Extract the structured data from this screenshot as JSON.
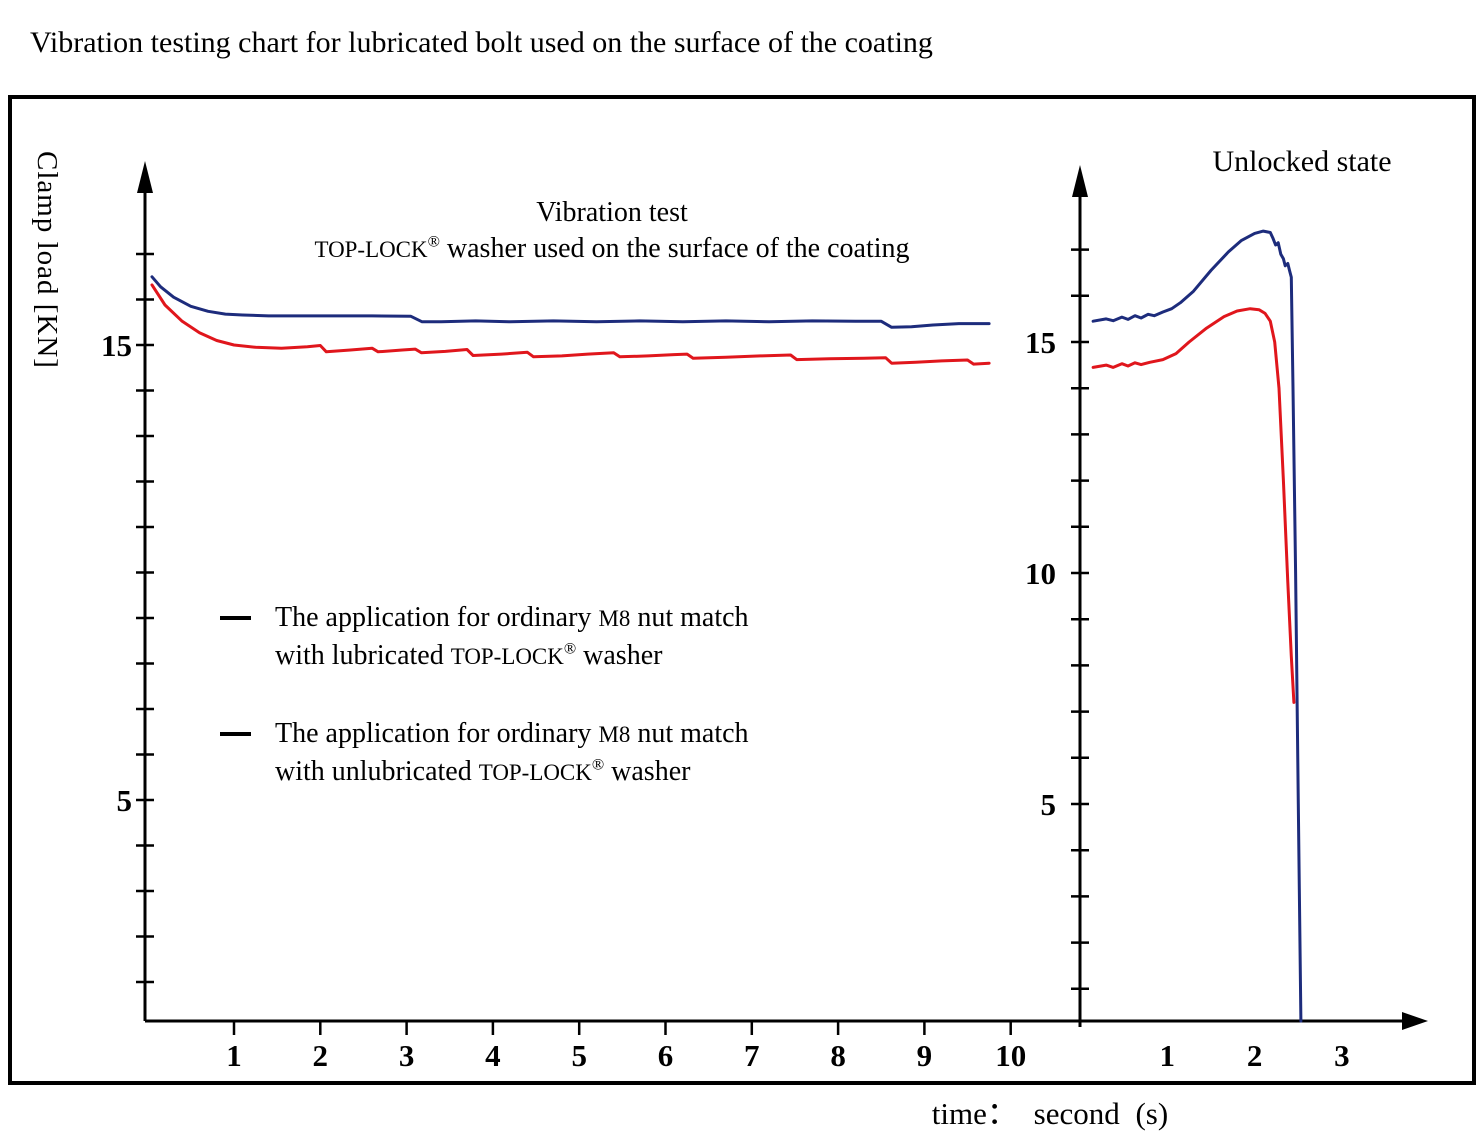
{
  "title": "Vibration testing chart for lubricated bolt used on the surface of the coating",
  "left_chart": {
    "title_line1": "Vibration test",
    "title_brand": "TOP-LOCK",
    "title_reg": "®",
    "title_line2_rest": " washer used on the surface of the coating",
    "ylabel": "Clamp load [KN]"
  },
  "right_chart": {
    "title": "Unlocked state"
  },
  "time_label": "time： second (s)",
  "legend": {
    "items": [
      {
        "line1_pre": "The application for ordinary ",
        "m8": "M8",
        "line1_post": " nut match",
        "line2_pre": "with lubricated ",
        "brand": "TOP-LOCK",
        "reg": "®",
        "line2_post": " washer"
      },
      {
        "line1_pre": "The application for ordinary ",
        "m8": "M8",
        "line1_post": " nut match",
        "line2_pre": "with unlubricated ",
        "brand": "TOP-LOCK",
        "reg": "®",
        "line2_post": " washer"
      }
    ]
  },
  "colors": {
    "blue": "#1d2c7c",
    "red": "#e0161c",
    "axis": "#000000"
  },
  "chart_data": [
    {
      "type": "line",
      "id": "vibration-test",
      "title": "Vibration test TOP-LOCK® washer used on the surface of the coating",
      "xlabel": "time： second (s)",
      "ylabel": "Clamp load [KN]",
      "xlim": [
        0,
        10.6
      ],
      "ylim": [
        0,
        18
      ],
      "grid": false,
      "x_ticks": [
        "1",
        "2",
        "3",
        "4",
        "5",
        "6",
        "7",
        "8",
        "9",
        "10"
      ],
      "y_minor_range": [
        1,
        17
      ],
      "y_labeled_ticks": [
        {
          "value": 15,
          "label": "15"
        },
        {
          "value": 5,
          "label": "5"
        }
      ],
      "series": [
        {
          "name": "blue-curve",
          "color": "#1d2c7c",
          "points": [
            [
              0.05,
              16.5
            ],
            [
              0.15,
              16.28
            ],
            [
              0.3,
              16.05
            ],
            [
              0.5,
              15.85
            ],
            [
              0.7,
              15.74
            ],
            [
              0.9,
              15.68
            ],
            [
              1.1,
              15.66
            ],
            [
              1.4,
              15.64
            ],
            [
              2.0,
              15.64
            ],
            [
              2.6,
              15.64
            ],
            [
              3.05,
              15.63
            ],
            [
              3.18,
              15.51
            ],
            [
              3.4,
              15.51
            ],
            [
              3.8,
              15.53
            ],
            [
              4.2,
              15.51
            ],
            [
              4.7,
              15.53
            ],
            [
              5.2,
              15.51
            ],
            [
              5.7,
              15.53
            ],
            [
              6.2,
              15.51
            ],
            [
              6.7,
              15.53
            ],
            [
              7.2,
              15.51
            ],
            [
              7.7,
              15.53
            ],
            [
              8.2,
              15.52
            ],
            [
              8.5,
              15.52
            ],
            [
              8.62,
              15.39
            ],
            [
              8.85,
              15.4
            ],
            [
              9.1,
              15.44
            ],
            [
              9.4,
              15.47
            ],
            [
              9.75,
              15.47
            ]
          ]
        },
        {
          "name": "red-curve",
          "color": "#e0161c",
          "points": [
            [
              0.05,
              16.32
            ],
            [
              0.2,
              15.88
            ],
            [
              0.4,
              15.52
            ],
            [
              0.6,
              15.27
            ],
            [
              0.8,
              15.1
            ],
            [
              1.0,
              15.0
            ],
            [
              1.25,
              14.95
            ],
            [
              1.55,
              14.93
            ],
            [
              1.85,
              14.96
            ],
            [
              2.0,
              14.99
            ],
            [
              2.07,
              14.85
            ],
            [
              2.35,
              14.89
            ],
            [
              2.6,
              14.93
            ],
            [
              2.67,
              14.85
            ],
            [
              2.95,
              14.89
            ],
            [
              3.1,
              14.91
            ],
            [
              3.17,
              14.83
            ],
            [
              3.45,
              14.86
            ],
            [
              3.7,
              14.9
            ],
            [
              3.77,
              14.77
            ],
            [
              4.1,
              14.8
            ],
            [
              4.4,
              14.84
            ],
            [
              4.47,
              14.74
            ],
            [
              4.8,
              14.76
            ],
            [
              5.1,
              14.8
            ],
            [
              5.4,
              14.83
            ],
            [
              5.47,
              14.74
            ],
            [
              5.8,
              14.76
            ],
            [
              6.1,
              14.79
            ],
            [
              6.25,
              14.8
            ],
            [
              6.32,
              14.71
            ],
            [
              6.7,
              14.73
            ],
            [
              7.1,
              14.76
            ],
            [
              7.45,
              14.78
            ],
            [
              7.52,
              14.68
            ],
            [
              7.9,
              14.7
            ],
            [
              8.3,
              14.71
            ],
            [
              8.55,
              14.72
            ],
            [
              8.62,
              14.6
            ],
            [
              8.9,
              14.62
            ],
            [
              9.2,
              14.65
            ],
            [
              9.5,
              14.67
            ],
            [
              9.57,
              14.58
            ],
            [
              9.75,
              14.6
            ]
          ]
        }
      ]
    },
    {
      "type": "line",
      "id": "unlocked-state",
      "title": "Unlocked state",
      "xlabel": "time： second (s)",
      "ylabel": "Clamp load [KN]",
      "xlim": [
        0,
        3.8
      ],
      "ylim": [
        0,
        18
      ],
      "grid": false,
      "x_tick_labels": [
        "1",
        "2",
        "3"
      ],
      "y_minor_range": [
        1,
        17
      ],
      "y_labeled_ticks": [
        {
          "value": 15,
          "label": "15"
        },
        {
          "value": 10,
          "label": "10"
        },
        {
          "value": 5,
          "label": "5"
        }
      ],
      "series": [
        {
          "name": "blue-curve",
          "color": "#1d2c7c",
          "points": [
            [
              0.15,
              15.45
            ],
            [
              0.3,
              15.5
            ],
            [
              0.38,
              15.46
            ],
            [
              0.48,
              15.54
            ],
            [
              0.55,
              15.49
            ],
            [
              0.63,
              15.57
            ],
            [
              0.7,
              15.52
            ],
            [
              0.78,
              15.6
            ],
            [
              0.85,
              15.57
            ],
            [
              0.95,
              15.65
            ],
            [
              1.05,
              15.72
            ],
            [
              1.15,
              15.85
            ],
            [
              1.3,
              16.1
            ],
            [
              1.5,
              16.55
            ],
            [
              1.7,
              16.95
            ],
            [
              1.85,
              17.2
            ],
            [
              2.0,
              17.35
            ],
            [
              2.1,
              17.4
            ],
            [
              2.18,
              17.37
            ],
            [
              2.21,
              17.25
            ],
            [
              2.24,
              17.1
            ],
            [
              2.27,
              17.15
            ],
            [
              2.3,
              16.9
            ],
            [
              2.33,
              16.8
            ],
            [
              2.35,
              16.65
            ],
            [
              2.38,
              16.7
            ],
            [
              2.4,
              16.55
            ],
            [
              2.42,
              16.4
            ],
            [
              2.44,
              14.0
            ],
            [
              2.47,
              10.0
            ],
            [
              2.5,
              5.0
            ],
            [
              2.53,
              0.3
            ]
          ]
        },
        {
          "name": "red-curve",
          "color": "#e0161c",
          "points": [
            [
              0.15,
              14.45
            ],
            [
              0.3,
              14.5
            ],
            [
              0.38,
              14.45
            ],
            [
              0.48,
              14.53
            ],
            [
              0.55,
              14.48
            ],
            [
              0.63,
              14.55
            ],
            [
              0.7,
              14.51
            ],
            [
              0.8,
              14.56
            ],
            [
              0.95,
              14.62
            ],
            [
              1.1,
              14.75
            ],
            [
              1.25,
              15.0
            ],
            [
              1.45,
              15.3
            ],
            [
              1.65,
              15.55
            ],
            [
              1.8,
              15.67
            ],
            [
              1.95,
              15.72
            ],
            [
              2.05,
              15.7
            ],
            [
              2.12,
              15.62
            ],
            [
              2.18,
              15.45
            ],
            [
              2.23,
              15.0
            ],
            [
              2.28,
              14.0
            ],
            [
              2.33,
              12.0
            ],
            [
              2.38,
              9.8
            ],
            [
              2.42,
              8.2
            ],
            [
              2.45,
              7.2
            ]
          ]
        }
      ]
    }
  ]
}
